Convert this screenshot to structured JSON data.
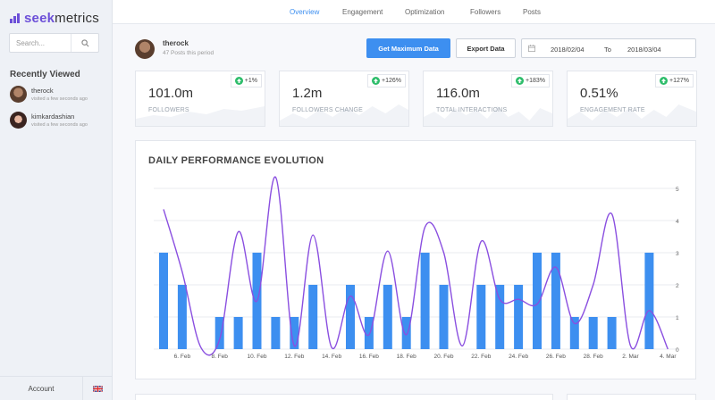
{
  "brand": {
    "prefix": "seek",
    "suffix": "metrics"
  },
  "search": {
    "placeholder": "Search..."
  },
  "recent": {
    "title": "Recently Viewed",
    "items": [
      {
        "name": "therock",
        "sub": "visited a few seconds ago"
      },
      {
        "name": "kimkardashian",
        "sub": "visited a few seconds ago"
      }
    ]
  },
  "sidebar_bottom": {
    "account": "Account"
  },
  "nav": {
    "items": [
      "Overview",
      "Engagement",
      "Optimization",
      "Followers",
      "Posts"
    ],
    "active": "Overview"
  },
  "profile": {
    "name": "therock",
    "posts": "47 Posts this period"
  },
  "actions": {
    "primary": "Get Maximum Data",
    "secondary": "Export Data"
  },
  "daterange": {
    "from": "2018/02/04",
    "to_label": "To",
    "to": "2018/03/04"
  },
  "stats": [
    {
      "value": "101.0m",
      "label": "FOLLOWERS",
      "change": "+1%"
    },
    {
      "value": "1.2m",
      "label": "FOLLOWERS CHANGE",
      "change": "+126%"
    },
    {
      "value": "116.0m",
      "label": "TOTAL INTERACTIONS",
      "change": "+183%"
    },
    {
      "value": "0.51%",
      "label": "ENGAGEMENT RATE",
      "change": "+127%"
    }
  ],
  "colors": {
    "accent": "#3d8ff0",
    "brand": "#6c4fd8",
    "bar": "#3d8ff0",
    "line": "#8a4fe0",
    "positive": "#2ebd6b"
  },
  "chart_data": {
    "type": "bar",
    "title": "DAILY PERFORMANCE EVOLUTION",
    "x_ticks": [
      "6. Feb",
      "8. Feb",
      "10. Feb",
      "12. Feb",
      "14. Feb",
      "16. Feb",
      "18. Feb",
      "20. Feb",
      "22. Feb",
      "24. Feb",
      "26. Feb",
      "28. Feb",
      "2. Mar",
      "4. Mar"
    ],
    "x_tick_start_index": 1,
    "ylim": [
      0,
      5
    ],
    "y_ticks": [
      0,
      1,
      2,
      3,
      4,
      5
    ],
    "grid": true,
    "series": [
      {
        "type": "bar",
        "values": [
          3,
          2,
          0,
          1,
          1,
          3,
          1,
          1,
          2,
          0,
          2,
          1,
          2,
          1,
          3,
          2,
          0,
          2,
          2,
          2,
          3,
          3,
          1,
          1,
          1,
          0,
          3,
          0
        ]
      },
      {
        "type": "line",
        "values": [
          4.35,
          2.4,
          0.05,
          0.3,
          3.65,
          1.5,
          5.35,
          0.1,
          3.55,
          0.05,
          1.65,
          0.45,
          3.05,
          0.45,
          3.8,
          3.0,
          0.1,
          3.35,
          1.55,
          1.55,
          1.4,
          2.55,
          0.8,
          2.0,
          4.2,
          0.1,
          1.2,
          0.0
        ]
      }
    ]
  }
}
